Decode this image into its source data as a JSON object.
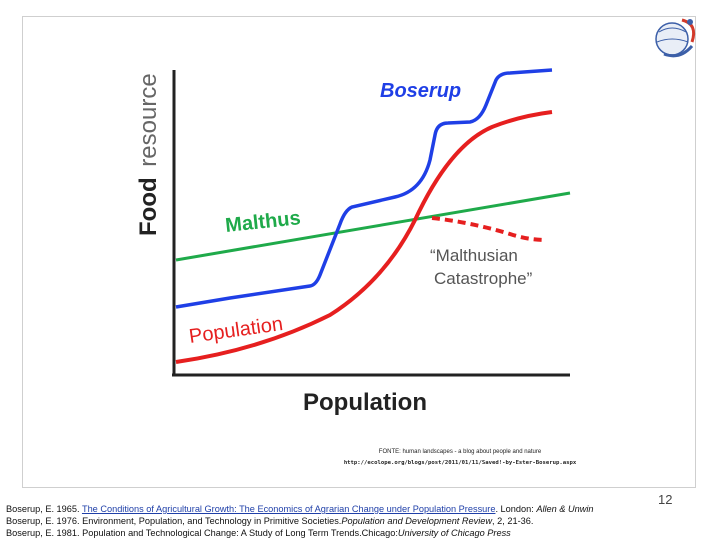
{
  "figure": {
    "y_axis_label_bold": "Food",
    "y_axis_label_light": "resource",
    "x_axis_label": "Population",
    "boserup_label": "Boserup",
    "malthus_label": "Malthus",
    "population_label": "Population",
    "catastrophe_line1": "“Malthusian",
    "catastrophe_line2": "Catastrophe”",
    "colors": {
      "boserup": "#1f3fe6",
      "malthus": "#1faa4a",
      "population": "#e61f1f",
      "axes": "#222222",
      "label_gray": "#555555"
    }
  },
  "credit": {
    "line1": "FONTE: human landscapes - a blog about people and nature",
    "line2": "http://ecolope.org/blogs/post/2011/01/11/Saved!-by-Ester-Boserup.aspx"
  },
  "references": {
    "ref1_prefix": "Boserup, E. 1965.",
    "ref1_link": "The Conditions of Agricultural Growth: The Economics of Agrarian Change under Population Pressure",
    "ref1_middle": ". London:",
    "ref1_publisher": "Allen & Unwin",
    "ref2_text": "Boserup, E. 1976. Environment, Population, and Technology in Primitive Societies.",
    "ref2_journal": "Population and Development Review",
    "ref2_rest": ", 2, 21-36.",
    "ref3_text": "Boserup, E. 1981. Population and Technological Change: A Study of Long Term Trends.Chicago:",
    "ref3_publisher": "University of Chicago Press"
  },
  "page_number": "12",
  "logo": {
    "icon": "inpe-globe-logo"
  }
}
